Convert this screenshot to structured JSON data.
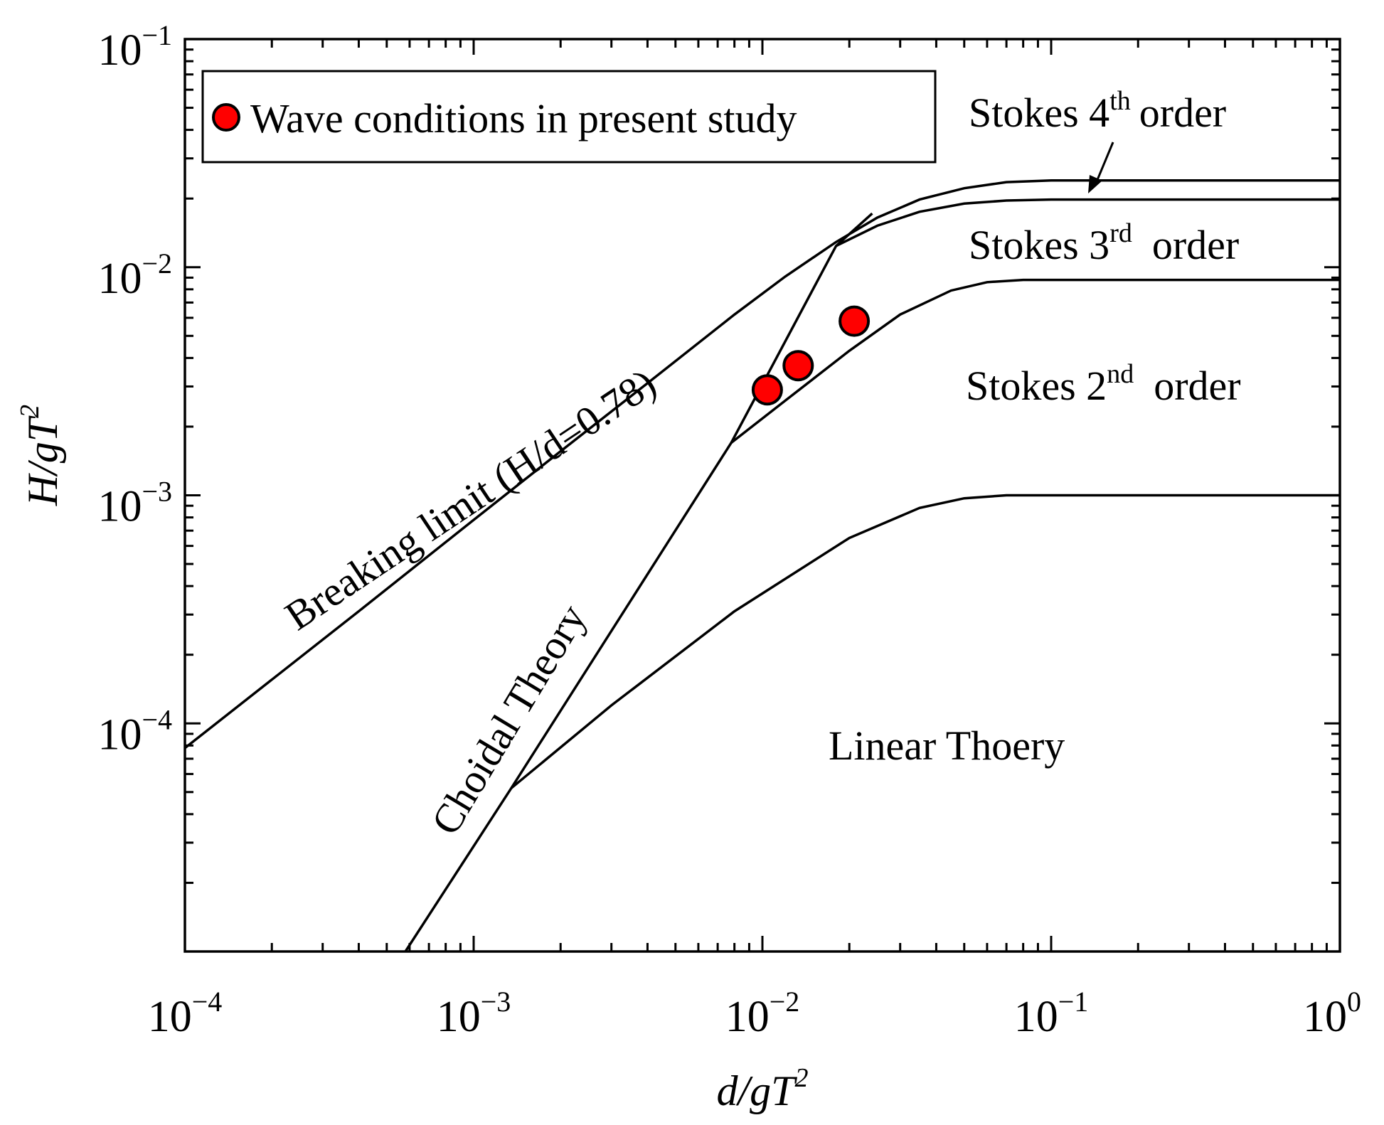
{
  "chart_data": {
    "type": "line",
    "title": "",
    "xlabel": "d/gT²",
    "ylabel": "H/gT²",
    "x_scale": "log",
    "y_scale": "log",
    "xlim": [
      0.0001,
      1
    ],
    "ylim": [
      1e-05,
      0.1
    ],
    "x_ticks": [
      {
        "value": 0.0001,
        "base": "10",
        "exp": "−4"
      },
      {
        "value": 0.001,
        "base": "10",
        "exp": "−3"
      },
      {
        "value": 0.01,
        "base": "10",
        "exp": "−2"
      },
      {
        "value": 0.1,
        "base": "10",
        "exp": "−1"
      },
      {
        "value": 1,
        "base": "10",
        "exp": "0"
      }
    ],
    "y_ticks": [
      {
        "value": 0.0001,
        "base": "10",
        "exp": "−4"
      },
      {
        "value": 0.001,
        "base": "10",
        "exp": "−3"
      },
      {
        "value": 0.01,
        "base": "10",
        "exp": "−2"
      },
      {
        "value": 0.1,
        "base": "10",
        "exp": "−1"
      }
    ],
    "grid": false,
    "legend": {
      "position": "top-left",
      "entries": [
        {
          "label": "Wave conditions in present study",
          "marker": "circle",
          "color": "#ff0000"
        }
      ]
    },
    "series": [
      {
        "name": "Breaking limit (H/d=0.78)",
        "x": [
          0.0001,
          0.0004,
          0.001,
          0.002,
          0.004,
          0.008,
          0.012,
          0.018,
          0.025,
          0.035,
          0.05,
          0.07,
          0.1,
          0.2,
          0.5,
          1
        ],
        "y": [
          7.8e-05,
          0.00031,
          0.00078,
          0.00156,
          0.0031,
          0.0062,
          0.0091,
          0.0129,
          0.0165,
          0.0198,
          0.0222,
          0.0236,
          0.024,
          0.024,
          0.024,
          0.024
        ]
      },
      {
        "name": "Stokes 4th order boundary",
        "x": [
          0.018,
          0.025,
          0.035,
          0.05,
          0.07,
          0.1,
          0.2,
          0.5,
          1
        ],
        "y": [
          0.0124,
          0.0152,
          0.0175,
          0.019,
          0.0196,
          0.0198,
          0.0198,
          0.0198,
          0.0198
        ]
      },
      {
        "name": "Stokes 3rd/2nd order boundary",
        "x": [
          0.0078,
          0.012,
          0.02,
          0.03,
          0.045,
          0.06,
          0.08,
          0.1,
          0.2,
          0.5,
          1
        ],
        "y": [
          0.0017,
          0.0026,
          0.0043,
          0.0062,
          0.0079,
          0.0086,
          0.0088,
          0.0088,
          0.0088,
          0.0088,
          0.0088
        ]
      },
      {
        "name": "Linear / Stokes 2nd order boundary",
        "x": [
          0.00135,
          0.003,
          0.008,
          0.02,
          0.035,
          0.05,
          0.07,
          0.1,
          0.2,
          0.5,
          1
        ],
        "y": [
          5.2e-05,
          0.00012,
          0.00031,
          0.00065,
          0.00088,
          0.00097,
          0.001,
          0.001,
          0.001,
          0.001,
          0.001
        ]
      },
      {
        "name": "Choidal Theory boundary",
        "x": [
          0.00058,
          0.00135,
          0.0078,
          0.018,
          0.024
        ],
        "y": [
          1e-05,
          5.2e-05,
          0.0017,
          0.0124,
          0.0172
        ]
      }
    ],
    "points": {
      "name": "Wave conditions in present study",
      "x": [
        0.0104,
        0.0133,
        0.0208
      ],
      "y": [
        0.0029,
        0.0037,
        0.0058
      ]
    },
    "annotations": [
      {
        "text": "Breaking limit (H/d=0.78)",
        "x": 0.00245,
        "y": 0.0012
      },
      {
        "text": "Choidal Theory",
        "x": 0.0016,
        "y": 0.00016
      },
      {
        "text": "Linear Thoery",
        "x": 0.12,
        "y": 8.2e-05
      },
      {
        "text": "Stokes 2nd  order",
        "x": 0.14,
        "y": 0.0029
      },
      {
        "text": "Stokes 3rd  order",
        "x": 0.14,
        "y": 0.012
      },
      {
        "text": "Stokes 4th order",
        "x": 0.14,
        "y": 0.048
      }
    ],
    "labels": {
      "breaking": "Breaking limit (H/d=0.78)",
      "choidal": "Choidal Theory",
      "linear": "Linear Thoery",
      "stokes2": {
        "main": "Stokes 2",
        "sup": "nd",
        "tail": "order"
      },
      "stokes3": {
        "main": "Stokes 3",
        "sup": "rd",
        "tail": "order"
      },
      "stokes4": {
        "main": "Stokes 4",
        "sup": "th",
        "tail": "order"
      },
      "xlabel": {
        "main": "d/gT",
        "sup": "2"
      },
      "ylabel": {
        "main": "H/gT",
        "sup": "2"
      }
    },
    "arrow": {
      "label": "Stokes 4th order",
      "points_to": "Stokes 4th order band"
    }
  }
}
